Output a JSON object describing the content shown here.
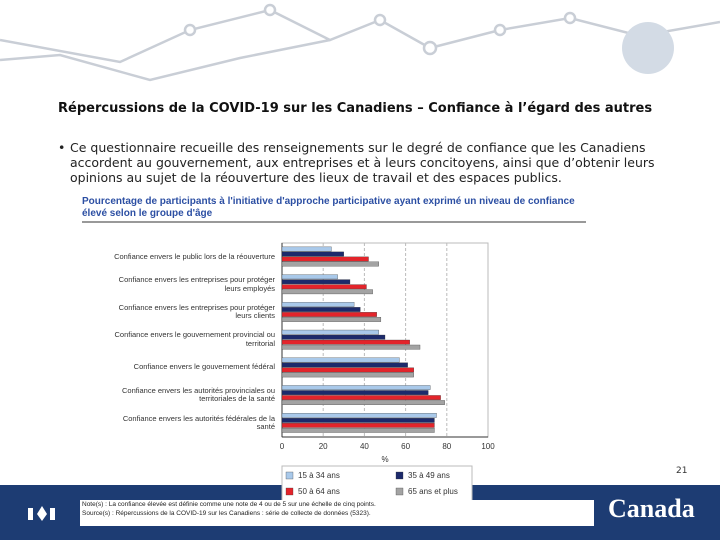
{
  "slide": {
    "title": "Répercussions de la COVID-19 sur les Canadiens – Confiance à l’égard des autres",
    "bullet": "Ce questionnaire recueille des renseignements sur le degré de confiance que les Canadiens accordent au gouvernement, aux entreprises et à leurs concitoyens, ainsi que d’obtenir leurs opinions au sujet de la réouverture des lieux de travail et des espaces publics.",
    "page_number": "21",
    "logo": "Canada"
  },
  "chart_data": {
    "type": "barh",
    "title": "Pourcentage de participants à l'initiative d'approche participative ayant exprimé un niveau de confiance élevé selon le groupe d'âge",
    "categories": [
      "Confiance envers le public lors de la réouverture",
      "Confiance envers les entreprises pour protéger leurs employés",
      "Confiance envers les entreprises pour protéger leurs clients",
      "Confiance envers le gouvernement provincial ou territorial",
      "Confiance envers le gouvernement fédéral",
      "Confiance envers les autorités provinciales ou territoriales de la santé",
      "Confiance envers les autorités fédérales de la santé"
    ],
    "series": [
      {
        "name": "15 à 34 ans",
        "color": "#a9c9ea",
        "values": [
          24,
          27,
          35,
          47,
          57,
          72,
          75
        ]
      },
      {
        "name": "35 à 49 ans",
        "color": "#1c2a6b",
        "values": [
          30,
          33,
          38,
          50,
          61,
          71,
          74
        ]
      },
      {
        "name": "50 à 64 ans",
        "color": "#e3242b",
        "values": [
          42,
          41,
          46,
          62,
          64,
          77,
          74
        ]
      },
      {
        "name": "65 ans et plus",
        "color": "#a3a3a3",
        "values": [
          47,
          44,
          48,
          67,
          64,
          79,
          74
        ]
      }
    ],
    "xlabel": "%",
    "xlim": [
      0,
      100
    ],
    "xticks": [
      0,
      20,
      40,
      60,
      80,
      100
    ],
    "grid": true,
    "note": "Note(s) : La confiance élevée est définie comme une note de 4 ou de 5 sur une échelle de cinq points.",
    "source": "Source(s) : Répercussions de la COVID-19 sur les Canadiens : série de collecte de données (5323)."
  }
}
